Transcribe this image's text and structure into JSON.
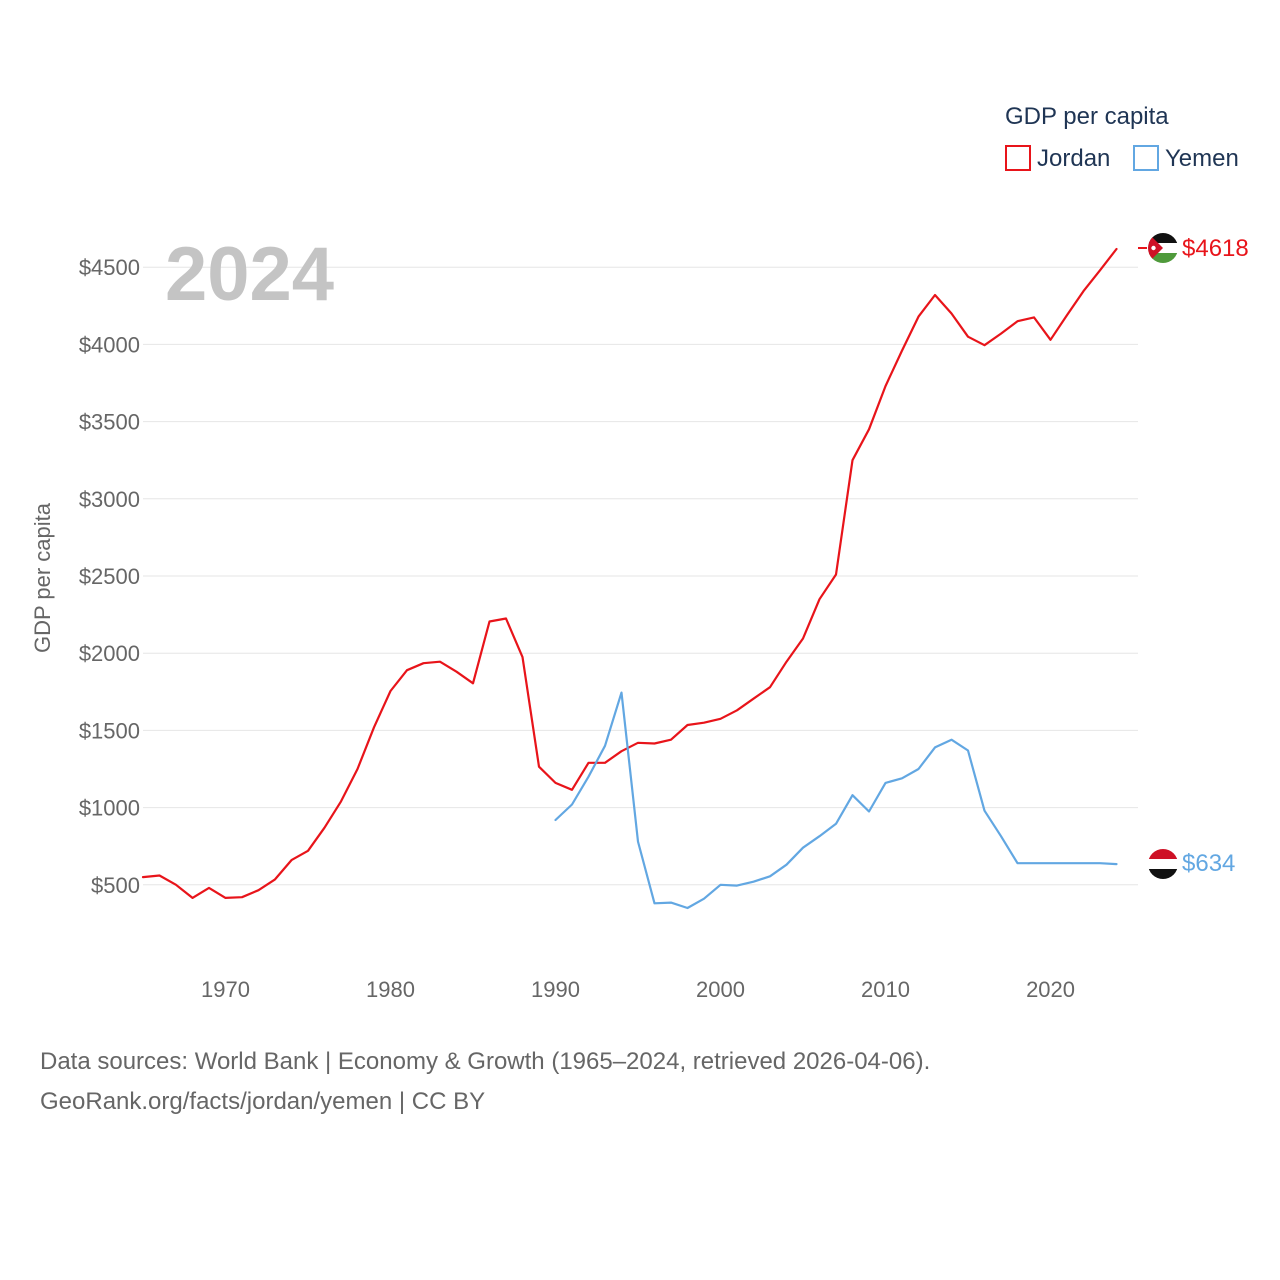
{
  "chart_data": {
    "type": "line",
    "title": "GDP per capita",
    "ylabel": "GDP per capita",
    "xlabel": "",
    "year_overlay": "2024",
    "xlim": [
      1965,
      2025.3
    ],
    "ylim": [
      0,
      5000
    ],
    "x_ticks": [
      1970,
      1980,
      1990,
      2000,
      2010,
      2020
    ],
    "y_ticks": [
      500,
      1000,
      1500,
      2000,
      2500,
      3000,
      3500,
      4000,
      4500
    ],
    "y_tick_labels": [
      "$500",
      "$1000",
      "$1500",
      "$2000",
      "$2500",
      "$3000",
      "$3500",
      "$4000",
      "$4500"
    ],
    "legend_title": "GDP per capita",
    "legend_position": "top-right",
    "series": [
      {
        "name": "Jordan",
        "color": "#e8141a",
        "end_label": "$4618",
        "x": [
          1965,
          1966,
          1967,
          1968,
          1969,
          1970,
          1971,
          1972,
          1973,
          1974,
          1975,
          1976,
          1977,
          1978,
          1979,
          1980,
          1981,
          1982,
          1983,
          1984,
          1985,
          1986,
          1987,
          1988,
          1989,
          1990,
          1991,
          1992,
          1993,
          1994,
          1995,
          1996,
          1997,
          1998,
          1999,
          2000,
          2001,
          2002,
          2003,
          2004,
          2005,
          2006,
          2007,
          2008,
          2009,
          2010,
          2011,
          2012,
          2013,
          2014,
          2015,
          2016,
          2017,
          2018,
          2019,
          2020,
          2021,
          2022,
          2023,
          2024
        ],
        "values": [
          550,
          560,
          500,
          415,
          480,
          415,
          420,
          465,
          535,
          660,
          720,
          870,
          1040,
          1250,
          1520,
          1755,
          1890,
          1935,
          1945,
          1880,
          1805,
          2205,
          2225,
          1975,
          1265,
          1160,
          1115,
          1290,
          1290,
          1365,
          1420,
          1415,
          1440,
          1535,
          1550,
          1575,
          1630,
          1705,
          1780,
          1945,
          2095,
          2350,
          2510,
          3250,
          3450,
          3730,
          3960,
          4180,
          4320,
          4200,
          4050,
          3995,
          4070,
          4150,
          4175,
          4030,
          4190,
          4345,
          4480,
          4618
        ]
      },
      {
        "name": "Yemen",
        "color": "#62a7e2",
        "end_label": "$634",
        "x": [
          1990,
          1991,
          1992,
          1993,
          1994,
          1995,
          1996,
          1997,
          1998,
          1999,
          2000,
          2001,
          2002,
          2003,
          2004,
          2005,
          2006,
          2007,
          2008,
          2009,
          2010,
          2011,
          2012,
          2013,
          2014,
          2015,
          2016,
          2017,
          2018,
          2019,
          2020,
          2021,
          2022,
          2023,
          2024
        ],
        "values": [
          920,
          1020,
          1200,
          1400,
          1745,
          780,
          380,
          385,
          350,
          410,
          500,
          495,
          520,
          555,
          630,
          740,
          815,
          895,
          1080,
          975,
          1160,
          1190,
          1250,
          1390,
          1440,
          1370,
          980,
          815,
          640,
          640,
          640,
          640,
          640,
          640,
          634
        ]
      }
    ]
  },
  "footer": {
    "source_line1": "Data sources: World Bank | Economy & Growth (1965–2024, retrieved 2026-04-06).",
    "source_line2": "GeoRank.org/facts/jordan/yemen | CC BY"
  }
}
